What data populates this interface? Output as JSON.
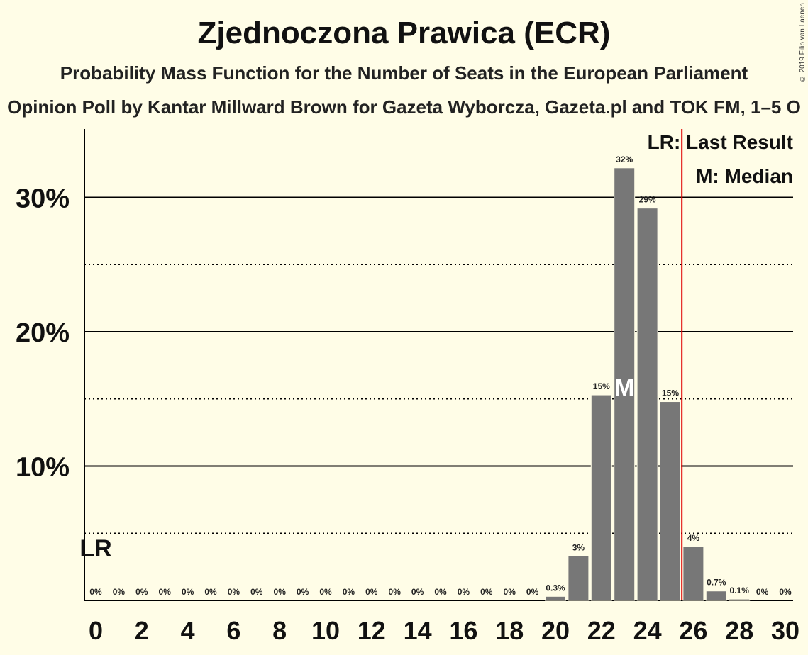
{
  "title": "Zjednoczona Prawica (ECR)",
  "subtitle": "Probability Mass Function for the Number of Seats in the European Parliament",
  "subsubtitle": "Opinion Poll by Kantar Millward Brown for Gazeta Wyborcza, Gazeta.pl and TOK FM, 1–5 O",
  "copyright": "© 2019 Filip van Laenen",
  "legend": {
    "last_result": "LR: Last Result",
    "median": "M: Median"
  },
  "markers": {
    "lr_text": "LR",
    "median_text": "M"
  },
  "colors": {
    "bar": "#777777",
    "background": "#fffde7",
    "last_result_line": "#e00000"
  },
  "chart_data": {
    "type": "bar",
    "categories": [
      0,
      1,
      2,
      3,
      4,
      5,
      6,
      7,
      8,
      9,
      10,
      11,
      12,
      13,
      14,
      15,
      16,
      17,
      18,
      19,
      20,
      21,
      22,
      23,
      24,
      25,
      26,
      27,
      28,
      29,
      30
    ],
    "values": [
      0,
      0,
      0,
      0,
      0,
      0,
      0,
      0,
      0,
      0,
      0,
      0,
      0,
      0,
      0,
      0,
      0,
      0,
      0,
      0,
      0.3,
      3.3,
      15.3,
      32.2,
      29.2,
      14.8,
      4.0,
      0.7,
      0.1,
      0,
      0
    ],
    "value_labels": [
      "0%",
      "0%",
      "0%",
      "0%",
      "0%",
      "0%",
      "0%",
      "0%",
      "0%",
      "0%",
      "0%",
      "0%",
      "0%",
      "0%",
      "0%",
      "0%",
      "0%",
      "0%",
      "0%",
      "0%",
      "0.3%",
      "3%",
      "15%",
      "32%",
      "29%",
      "15%",
      "4%",
      "0.7%",
      "0.1%",
      "0%",
      "0%"
    ],
    "x_tick_labels": [
      "0",
      "2",
      "4",
      "6",
      "8",
      "10",
      "12",
      "14",
      "16",
      "18",
      "20",
      "22",
      "24",
      "26",
      "28",
      "30"
    ],
    "y_tick_labels": [
      "10%",
      "20%",
      "30%"
    ],
    "ylim": [
      0,
      35
    ],
    "last_result": 0,
    "last_result_line_x": 25.5,
    "median": 23,
    "grid": true
  }
}
